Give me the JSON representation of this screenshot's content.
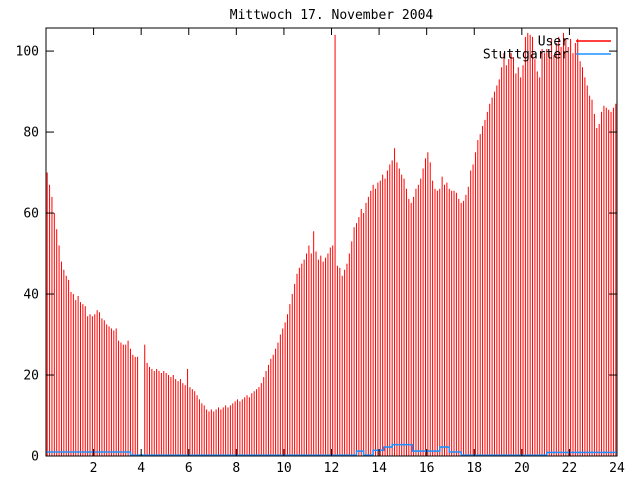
{
  "window": {
    "background": "#ffffff"
  },
  "chart_data": {
    "type": "bar",
    "title": "Mittwoch 17. November 2004",
    "xlabel": "",
    "ylabel": "",
    "x_unit": "hour of day",
    "xlim": [
      0,
      24
    ],
    "ylim": [
      0,
      105.7
    ],
    "x_ticks": [
      2,
      4,
      6,
      8,
      10,
      12,
      14,
      16,
      18,
      20,
      22,
      24
    ],
    "y_ticks": [
      0,
      20,
      40,
      60,
      80,
      100
    ],
    "grid": "off",
    "legend_position": "top-right",
    "axis_color": "#000000",
    "series": [
      {
        "name": "User",
        "style": "impulses",
        "color": "#ff0000",
        "sample_interval_hours": 0.1,
        "first_sample_hour": 0.05,
        "values": [
          70,
          67,
          64,
          60,
          56,
          52,
          48,
          46,
          44.5,
          43.5,
          40.5,
          40,
          38.5,
          39.5,
          38,
          37.5,
          37,
          34.5,
          35,
          34.5,
          35,
          36,
          35.5,
          34,
          33.5,
          32.5,
          32,
          31.5,
          31,
          31.5,
          28.5,
          28,
          27.5,
          27.5,
          28.5,
          26.5,
          25,
          24.5,
          24.5,
          0,
          0,
          27.5,
          23,
          22,
          21.5,
          21,
          21.5,
          21,
          20.5,
          21,
          20.5,
          20,
          19.5,
          20,
          19,
          18.5,
          19,
          18,
          17.5,
          21.5,
          17,
          16.5,
          16,
          15,
          14,
          13,
          12.5,
          11.5,
          11,
          11.5,
          11,
          11.5,
          12,
          11.5,
          12,
          12.5,
          12,
          12.5,
          13,
          13.5,
          14,
          13.5,
          14,
          14.5,
          15,
          14.5,
          15.5,
          16,
          16.5,
          17,
          18,
          19.5,
          21,
          22.5,
          24,
          25,
          26.5,
          28,
          30,
          31.5,
          33,
          35,
          37.5,
          40,
          42.5,
          45,
          46.5,
          47.5,
          48.5,
          50,
          52,
          50,
          55.5,
          50.5,
          48.5,
          49.5,
          48,
          49,
          50,
          51.5,
          52,
          104,
          47,
          46.5,
          44.5,
          46,
          47.5,
          50,
          53,
          56.5,
          57.5,
          59,
          61,
          60,
          62.5,
          64,
          65.5,
          67,
          66,
          67.5,
          68,
          69.5,
          68.5,
          70.5,
          72,
          73,
          76,
          72.5,
          71,
          69.5,
          68.5,
          66,
          63.5,
          62.5,
          64,
          66,
          67,
          68.5,
          71,
          73.5,
          75,
          72.5,
          68,
          66,
          65.5,
          66,
          69,
          67,
          67.5,
          66,
          65.5,
          65.5,
          65,
          63.5,
          62.5,
          63,
          64.5,
          66.5,
          70.5,
          72,
          75,
          78,
          79.5,
          81.5,
          83,
          85,
          87,
          88.5,
          90,
          91.5,
          93,
          96,
          99.5,
          96.5,
          98,
          99.5,
          98.5,
          94.5,
          96,
          93.5,
          96.5,
          103.5,
          104.5,
          104,
          103.5,
          98,
          95,
          93.5,
          100.5,
          99.5,
          100.5,
          100,
          103,
          99,
          102,
          103.5,
          101,
          104.5,
          103,
          101,
          103,
          99.5,
          102,
          103,
          97.5,
          96,
          93.5,
          91.5,
          89,
          88,
          84.5,
          81,
          82,
          85,
          86.5,
          86,
          85.5,
          85,
          86,
          87
        ]
      },
      {
        "name": "Stuttgarter",
        "style": "step-line",
        "color": "#1e90ff",
        "points": [
          [
            0,
            1
          ],
          [
            3.55,
            1
          ],
          [
            3.55,
            0.2
          ],
          [
            13.05,
            0.2
          ],
          [
            13.05,
            1.2
          ],
          [
            13.35,
            1.2
          ],
          [
            13.35,
            0.2
          ],
          [
            13.75,
            0.2
          ],
          [
            13.75,
            1.4
          ],
          [
            14.2,
            1.4
          ],
          [
            14.2,
            2.2
          ],
          [
            14.55,
            2.2
          ],
          [
            14.55,
            2.8
          ],
          [
            15.4,
            2.8
          ],
          [
            15.4,
            1.2
          ],
          [
            16.55,
            1.2
          ],
          [
            16.55,
            2.2
          ],
          [
            16.95,
            2.2
          ],
          [
            16.95,
            1
          ],
          [
            17.45,
            1
          ],
          [
            17.45,
            0.2
          ],
          [
            21.05,
            0.2
          ],
          [
            21.05,
            0.9
          ],
          [
            24,
            0.9
          ]
        ]
      }
    ],
    "legend": {
      "entries": [
        {
          "label": "User",
          "color": "#ff0000"
        },
        {
          "label": "Stuttgarter",
          "color": "#1e90ff"
        }
      ]
    }
  }
}
